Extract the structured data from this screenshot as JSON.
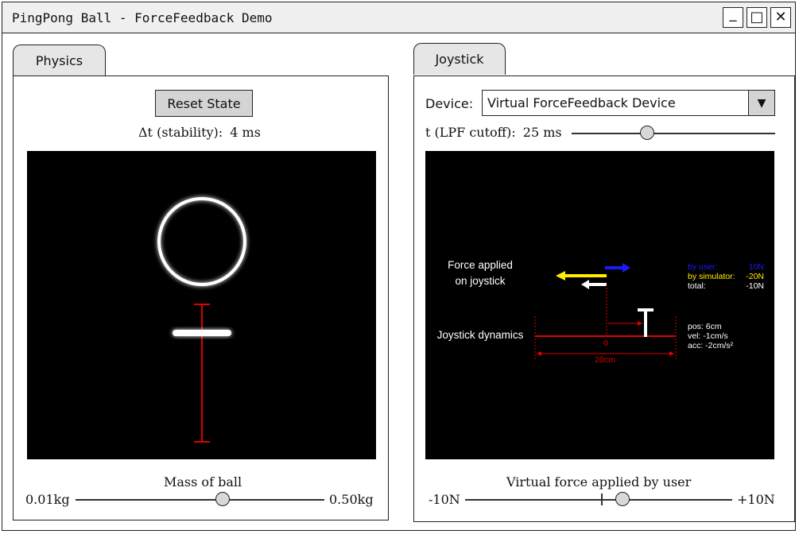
{
  "window": {
    "title": "PingPong Ball - ForceFeedback Demo",
    "minimize_glyph": "_",
    "maximize_glyph": "□",
    "close_glyph": "✕"
  },
  "physics": {
    "tab_label": "Physics",
    "reset_button": "Reset State",
    "dt_label": "Δt (stability):",
    "dt_value": "4 ms",
    "mass": {
      "label": "Mass of ball",
      "min_label": "0.01kg",
      "max_label": "0.50kg",
      "position_fraction": 0.59
    }
  },
  "joystick": {
    "tab_label": "Joystick",
    "device_label": "Device:",
    "device_value": "Virtual ForceFeedback Device",
    "dropdown_arrow": "▼",
    "lpf_label": "t (LPF cutoff):",
    "lpf_value": "25 ms",
    "lpf_position_fraction": 0.37,
    "viz": {
      "force_title_line1": "Force applied",
      "force_title_line2": "on joystick",
      "dynamics_title": "Joystick dynamics",
      "by_user_label": "by user:",
      "by_user_value": "10N",
      "by_sim_label": "by simulator:",
      "by_sim_value": "-20N",
      "total_label": "total:",
      "total_value": "-10N",
      "pos": "pos: 6cm",
      "vel": "vel: -1cm/s",
      "acc": "acc: -2cm/s²",
      "zero_label": "0",
      "range_label": "20cm"
    },
    "virtual_force": {
      "label": "Virtual force applied by user",
      "min_label": "-10N",
      "max_label": "+10N",
      "position_fraction": 0.59
    }
  },
  "colors": {
    "user_force": "#1a1aff",
    "sim_force": "#ffee00",
    "rail": "#e00000"
  }
}
